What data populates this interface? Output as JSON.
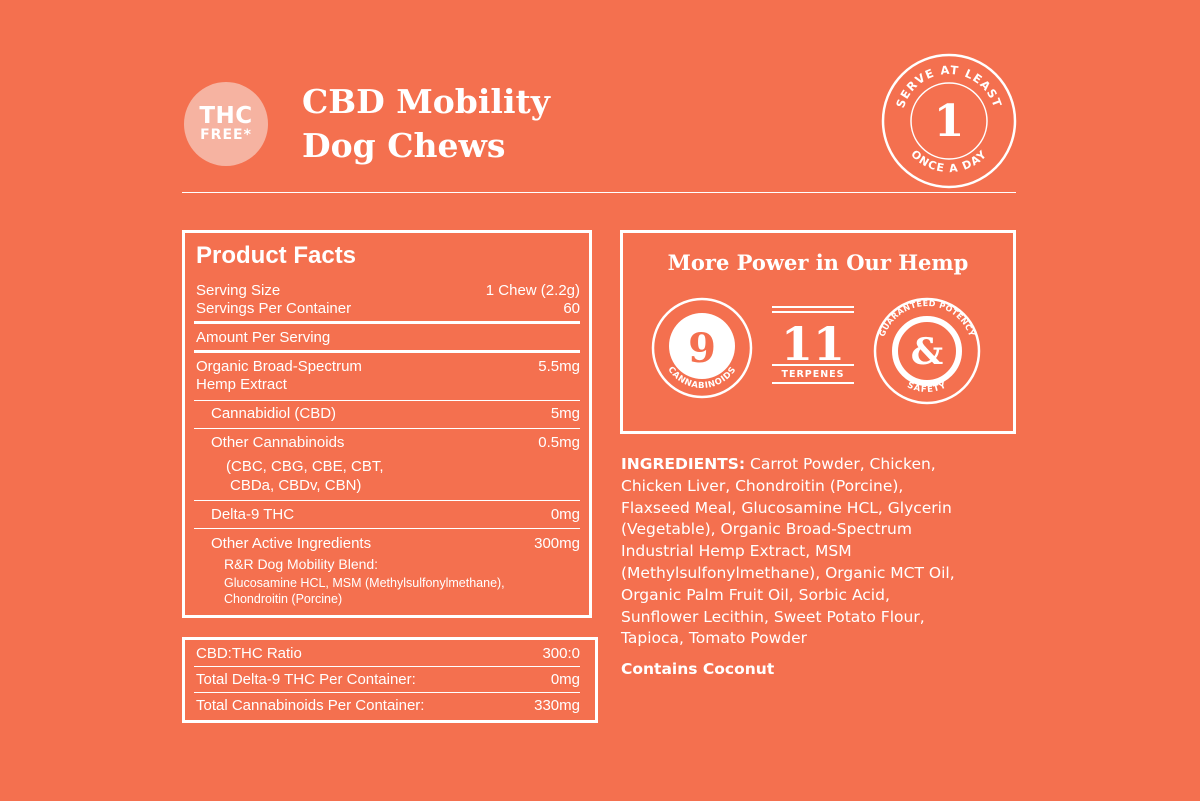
{
  "header": {
    "badge_line1": "THC",
    "badge_line2": "FREE*",
    "title_line1": "CBD Mobility",
    "title_line2": "Dog Chews",
    "serve_top": "SERVE AT LEAST",
    "serve_number": "1",
    "serve_bottom": "ONCE A DAY"
  },
  "facts": {
    "title": "Product Facts",
    "serving_size_label": "Serving Size",
    "serving_size_value": "1 Chew (2.2g)",
    "servings_label": "Servings Per Container",
    "servings_value": "60",
    "amount_label": "Amount Per Serving",
    "hemp_label_1": "Organic Broad-Spectrum",
    "hemp_label_2": "Hemp Extract",
    "hemp_value": "5.5mg",
    "cbd_label": "Cannabidiol (CBD)",
    "cbd_value": "5mg",
    "other_label": "Other Cannabinoids",
    "other_value": "0.5mg",
    "other_list_1": "(CBC, CBG, CBE, CBT,",
    "other_list_2": "CBDa, CBDv, CBN)",
    "delta_label": "Delta-9 THC",
    "delta_value": "0mg",
    "active_label": "Other Active Ingredients",
    "active_value": "300mg",
    "blend_label": "R&R Dog Mobility Blend:",
    "blend_1": "Glucosamine HCL, MSM (Methylsulfonylmethane),",
    "blend_2": "Chondroitin (Porcine)"
  },
  "ratio": {
    "ratio_label": "CBD:THC Ratio",
    "ratio_value": "300:0",
    "total_delta_label": "Total Delta-9 THC Per Container:",
    "total_delta_value": "0mg",
    "total_cann_label": "Total Cannabinoids Per Container:",
    "total_cann_value": "330mg"
  },
  "power": {
    "title": "More Power in Our Hemp",
    "cannabinoids_number": "9",
    "cannabinoids_label": "CANNABINOIDS",
    "terpenes_number": "11",
    "terpenes_label": "TERPENES",
    "potency_label": "GUARANTEED POTENCY",
    "potency_symbol": "&",
    "safety_label": "SAFETY"
  },
  "ingredients": {
    "heading": "INGREDIENTS:",
    "line1": " Carrot Powder, Chicken,",
    "line2": "Chicken Liver, Chondroitin (Porcine),",
    "line3": "Flaxseed Meal, Glucosamine HCL, Glycerin",
    "line4": "(Vegetable), Organic Broad-Spectrum",
    "line5": "Industrial Hemp Extract, MSM",
    "line6": "(Methylsulfonylmethane), Organic MCT Oil,",
    "line7": "Organic Palm Fruit Oil, Sorbic Acid,",
    "line8": "Sunflower Lecithin, Sweet Potato Flour,",
    "line9": "Tapioca, Tomato Powder",
    "contains": "Contains Coconut"
  }
}
